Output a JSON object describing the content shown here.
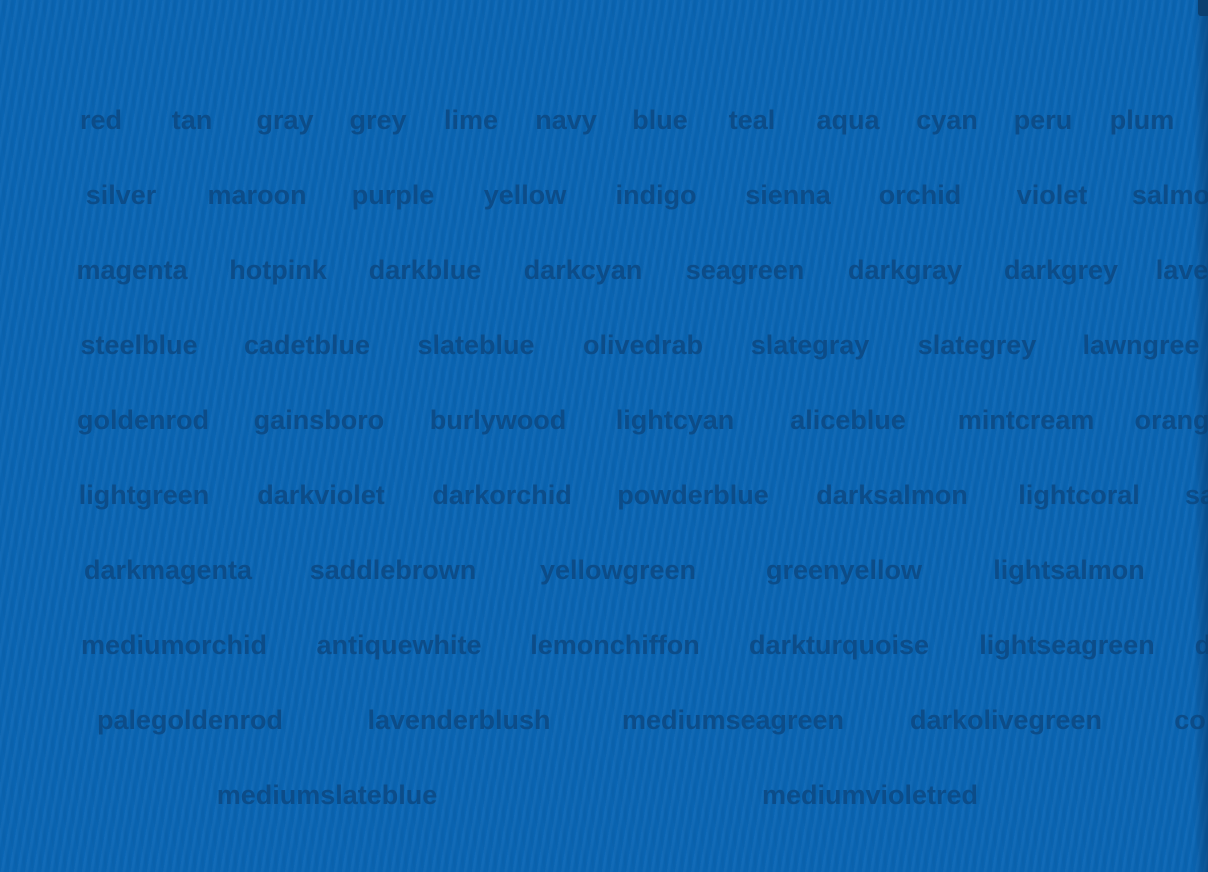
{
  "rows": [
    [
      "red",
      "tan",
      "gray",
      "grey",
      "lime",
      "navy",
      "blue",
      "teal",
      "aqua",
      "cyan",
      "peru",
      "plum"
    ],
    [
      "silver",
      "maroon",
      "purple",
      "yellow",
      "indigo",
      "sienna",
      "orchid",
      "violet",
      "salmo"
    ],
    [
      "magenta",
      "hotpink",
      "darkblue",
      "darkcyan",
      "seagreen",
      "darkgray",
      "darkgrey",
      "lave"
    ],
    [
      "steelblue",
      "cadetblue",
      "slateblue",
      "olivedrab",
      "slategray",
      "slategrey",
      "lawngree"
    ],
    [
      "goldenrod",
      "gainsboro",
      "burlywood",
      "lightcyan",
      "aliceblue",
      "mintcream",
      "orang"
    ],
    [
      "lightgreen",
      "darkviolet",
      "darkorchid",
      "powderblue",
      "darksalmon",
      "lightcoral",
      "sa"
    ],
    [
      "darkmagenta",
      "saddlebrown",
      "yellowgreen",
      "greenyellow",
      "lightsalmon"
    ],
    [
      "mediumorchid",
      "antiquewhite",
      "lemonchiffon",
      "darkturquoise",
      "lightseagreen",
      "d"
    ],
    [
      "palegoldenrod",
      "lavenderblush",
      "mediumseagreen",
      "darkolivegreen",
      "co"
    ],
    [
      "mediumslateblue",
      "mediumvioletred"
    ]
  ],
  "colors": {
    "background": "#0a66b5",
    "word": "#0c4c88"
  }
}
